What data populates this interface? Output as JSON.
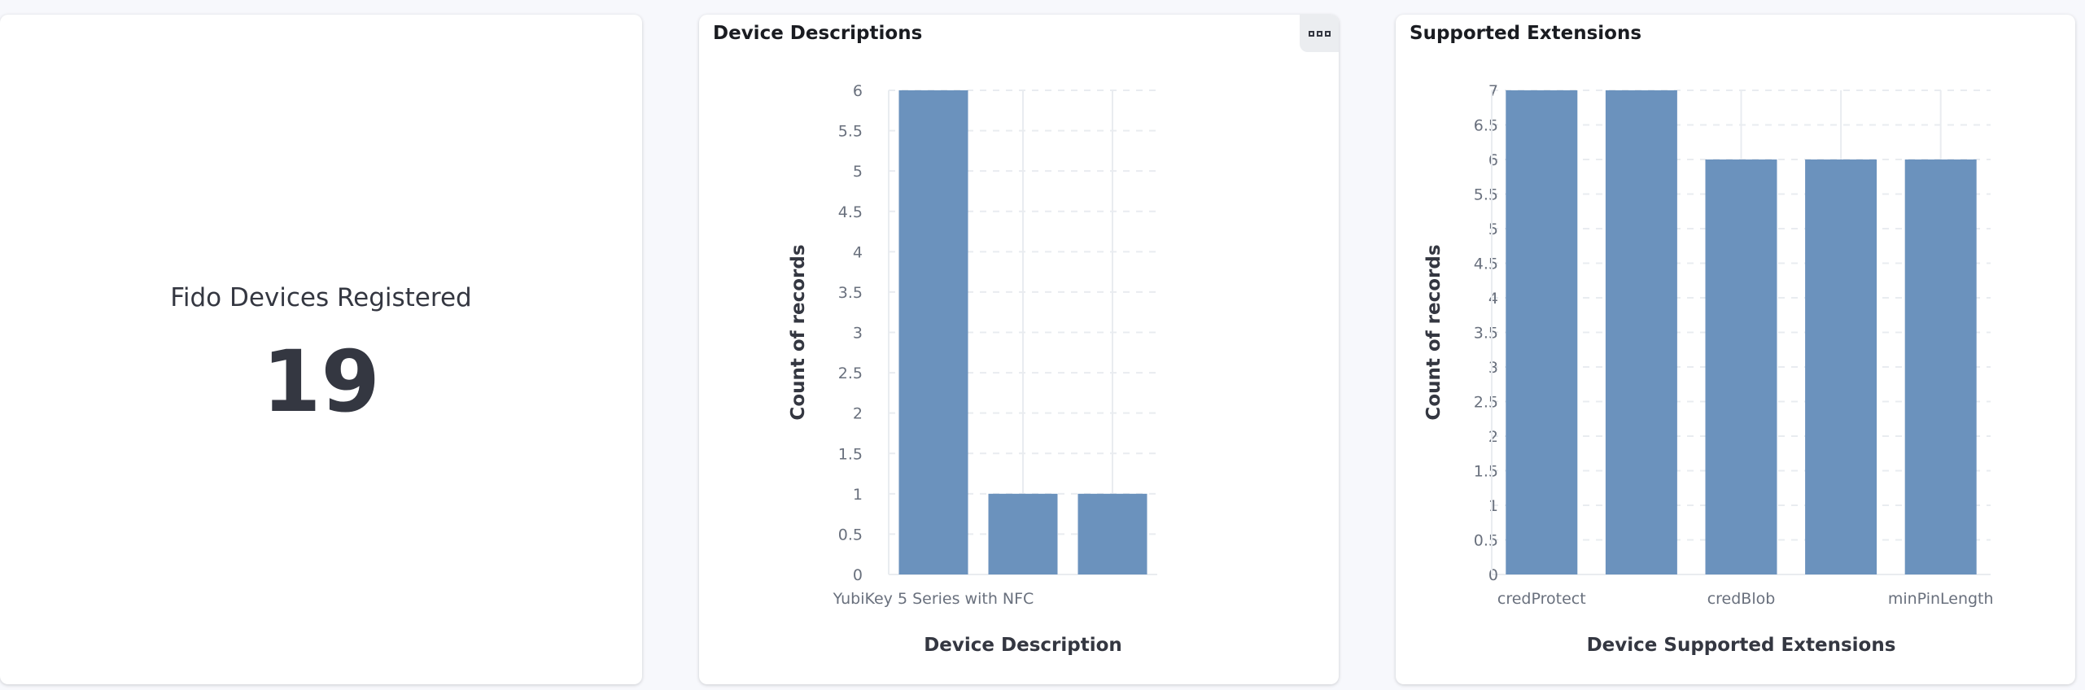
{
  "metric": {
    "label": "Fido Devices Registered",
    "value": "19"
  },
  "colors": {
    "bar": "#6b92bd",
    "grid": "#e9ecf0"
  },
  "chart_data": [
    {
      "type": "bar",
      "title": "Device Descriptions",
      "categories": [
        "YubiKey 5 Series with NFC",
        "",
        ""
      ],
      "values": [
        6,
        1,
        1
      ],
      "xlabel": "Device Description",
      "ylabel": "Count of records",
      "ylim": [
        0,
        6
      ],
      "yticks": [
        "0",
        "0.5",
        "1",
        "1.5",
        "2",
        "2.5",
        "3",
        "3.5",
        "4",
        "4.5",
        "5",
        "5.5",
        "6"
      ],
      "grid": true,
      "has_menu": true
    },
    {
      "type": "bar",
      "title": "Supported Extensions",
      "categories": [
        "credProtect",
        "",
        "credBlob",
        "",
        "minPinLength"
      ],
      "values": [
        7,
        7,
        6,
        6,
        6
      ],
      "xlabel": "Device Supported Extensions",
      "ylabel": "Count of records",
      "ylim": [
        0,
        7
      ],
      "yticks": [
        "0",
        "0.5",
        "1",
        "1.5",
        "2",
        "2.5",
        "3",
        "3.5",
        "4",
        "4.5",
        "5",
        "5.5",
        "6",
        "6.5",
        "7"
      ],
      "grid": true
    }
  ]
}
